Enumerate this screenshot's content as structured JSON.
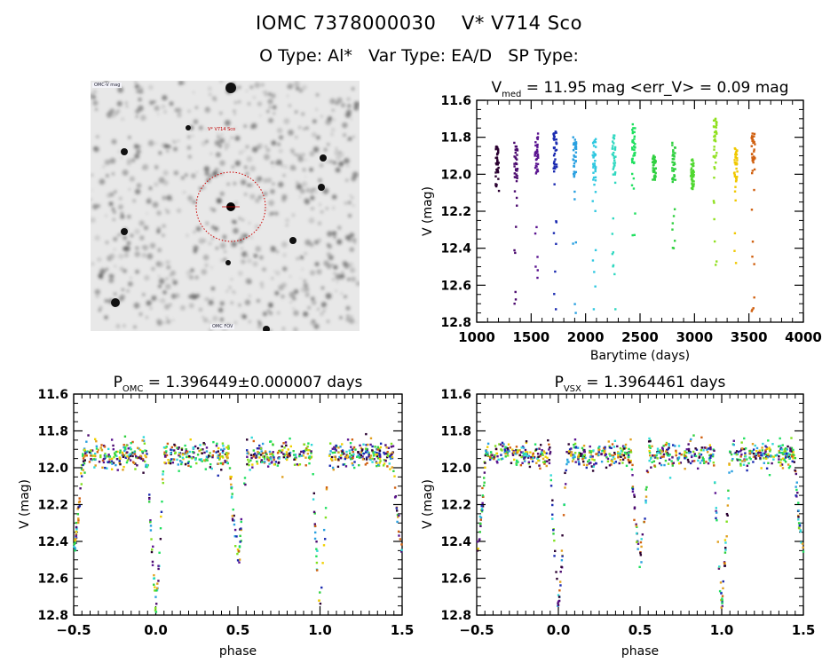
{
  "header": {
    "title": "IOMC 7378000030    V* V714 Sco",
    "subtitle": "O Type: Al*   Var Type: EA/D   SP Type:"
  },
  "finding_chart": {
    "corner_label_top_left": "OMC-V mag",
    "target_label": "V* V714 Sco",
    "bottom_label": "OMC FOV",
    "target_marker_color": "#cc0000"
  },
  "colors": {
    "sequence": [
      "#2a0030",
      "#4b0a6e",
      "#5a1490",
      "#1a2ab0",
      "#2aa0e0",
      "#30d8d8",
      "#20e060",
      "#30d040",
      "#80e020",
      "#f0d000",
      "#e0a020",
      "#d06010"
    ]
  },
  "chart_data": [
    {
      "id": "lightcurve",
      "type": "scatter",
      "title_main": "V",
      "title_sub": "med",
      "title_rest": " = 11.95 mag <err_V> = 0.09 mag",
      "xlabel": "Barytime (days)",
      "ylabel": "V (mag)",
      "xlim": [
        1000,
        4000
      ],
      "ylim": [
        11.6,
        12.8
      ],
      "y_inverted": true,
      "xticks": [
        "1000",
        "1500",
        "2000",
        "2500",
        "3000",
        "3500",
        "4000"
      ],
      "yticks": [
        "11.6",
        "11.8",
        "12.0",
        "12.2",
        "12.4",
        "12.6",
        "12.8"
      ],
      "groups": [
        {
          "t": 1190,
          "ymin": 11.85,
          "ymax": 12.09,
          "color": "#2a0030"
        },
        {
          "t": 1360,
          "ymin": 11.83,
          "ymax": 12.7,
          "color": "#4b0a6e"
        },
        {
          "t": 1550,
          "ymin": 11.78,
          "ymax": 12.56,
          "color": "#5a1490"
        },
        {
          "t": 1720,
          "ymin": 11.77,
          "ymax": 12.73,
          "color": "#1a2ab0"
        },
        {
          "t": 1900,
          "ymin": 11.8,
          "ymax": 12.75,
          "color": "#2aa0e0"
        },
        {
          "t": 2080,
          "ymin": 11.81,
          "ymax": 12.73,
          "color": "#30c8e0"
        },
        {
          "t": 2260,
          "ymin": 11.79,
          "ymax": 12.73,
          "color": "#30d8c0"
        },
        {
          "t": 2440,
          "ymin": 11.73,
          "ymax": 12.33,
          "color": "#20e060"
        },
        {
          "t": 2630,
          "ymin": 11.9,
          "ymax": 12.03,
          "color": "#30d040"
        },
        {
          "t": 2810,
          "ymin": 11.83,
          "ymax": 12.4,
          "color": "#30d040"
        },
        {
          "t": 2980,
          "ymin": 11.92,
          "ymax": 12.08,
          "color": "#50d830"
        },
        {
          "t": 3190,
          "ymin": 11.7,
          "ymax": 12.49,
          "color": "#90e020"
        },
        {
          "t": 3380,
          "ymin": 11.86,
          "ymax": 12.48,
          "color": "#f0c800"
        },
        {
          "t": 3540,
          "ymin": 11.78,
          "ymax": 12.74,
          "color": "#d06010"
        }
      ]
    },
    {
      "id": "phase_omc",
      "type": "scatter",
      "title_main": "P",
      "title_sub": "OMC",
      "title_rest": " = 1.396449±0.000007 days",
      "period_days": 1.396449,
      "period_err_days": 7e-06,
      "xlabel": "phase",
      "ylabel": "V (mag)",
      "xlim": [
        -0.5,
        1.5
      ],
      "ylim": [
        11.6,
        12.8
      ],
      "y_inverted": true,
      "xticks": [
        "−0.5",
        "0.0",
        "0.5",
        "1.0",
        "1.5"
      ],
      "yticks": [
        "11.6",
        "11.8",
        "12.0",
        "12.2",
        "12.4",
        "12.6",
        "12.8"
      ],
      "out_of_eclipse_mag": 11.93,
      "primary_eclipse": {
        "phase": 0.0,
        "depth_mag": 12.72
      },
      "secondary_eclipse": {
        "phase": 0.5,
        "depth_mag": 12.47
      }
    },
    {
      "id": "phase_vsx",
      "type": "scatter",
      "title_main": "P",
      "title_sub": "VSX",
      "title_rest": " = 1.3964461 days",
      "period_days": 1.3964461,
      "xlabel": "phase",
      "ylabel": "V (mag)",
      "xlim": [
        -0.5,
        1.5
      ],
      "ylim": [
        11.6,
        12.8
      ],
      "y_inverted": true,
      "xticks": [
        "−0.5",
        "0.0",
        "0.5",
        "1.0",
        "1.5"
      ],
      "yticks": [
        "11.6",
        "11.8",
        "12.0",
        "12.2",
        "12.4",
        "12.6",
        "12.8"
      ],
      "out_of_eclipse_mag": 11.93,
      "primary_eclipse": {
        "phase": 0.0,
        "depth_mag": 12.72
      },
      "secondary_eclipse": {
        "phase": 0.5,
        "depth_mag": 12.47
      }
    }
  ]
}
